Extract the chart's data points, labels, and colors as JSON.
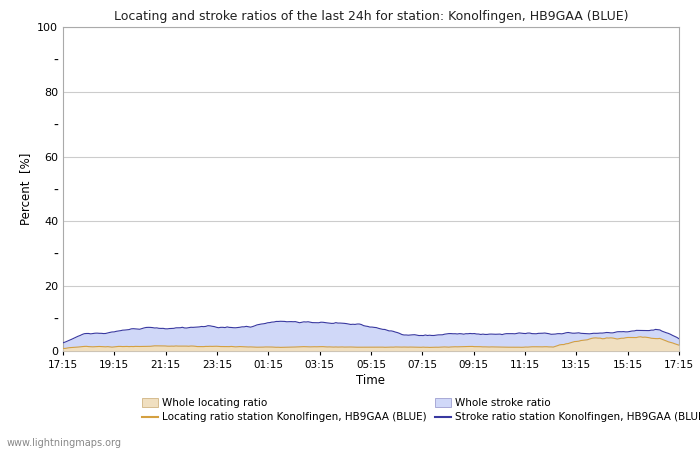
{
  "title": "Locating and stroke ratios of the last 24h for station: Konolfingen, HB9GAA (BLUE)",
  "ylabel": "Percent  [%]",
  "xlabel": "Time",
  "ylim": [
    0,
    100
  ],
  "yticks_major": [
    0,
    20,
    40,
    60,
    80,
    100
  ],
  "yticks_minor": [
    10,
    30,
    50,
    70,
    90
  ],
  "xtick_labels": [
    "17:15",
    "19:15",
    "21:15",
    "23:15",
    "01:15",
    "03:15",
    "05:15",
    "07:15",
    "09:15",
    "11:15",
    "13:15",
    "15:15",
    "17:15"
  ],
  "background_color": "#ffffff",
  "plot_background": "#ffffff",
  "grid_color": "#cccccc",
  "watermark": "www.lightningmaps.org",
  "locating_fill_color": "#f0dfc0",
  "stroke_fill_color": "#d0d8f8",
  "locating_line_color": "#d4a040",
  "stroke_line_color": "#3838a0",
  "figsize": [
    7.0,
    4.5
  ],
  "dpi": 100
}
